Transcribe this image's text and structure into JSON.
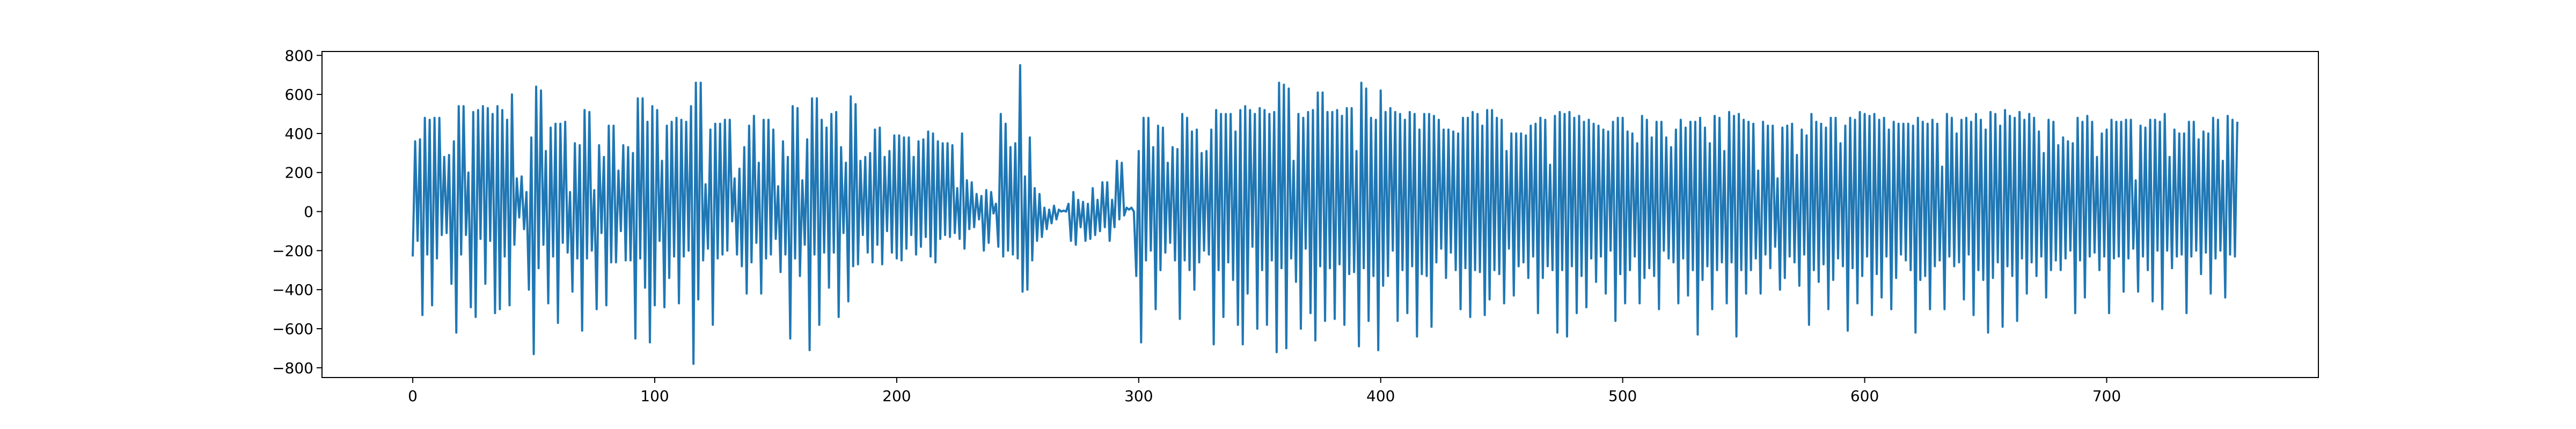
{
  "chart_data": {
    "type": "line",
    "title": "",
    "xlabel": "",
    "ylabel": "",
    "xlim": [
      -37.5,
      787.5
    ],
    "ylim": [
      -850,
      820
    ],
    "x_ticks": [
      0,
      100,
      200,
      300,
      400,
      500,
      600,
      700
    ],
    "y_ticks": [
      -800,
      -600,
      -400,
      -200,
      0,
      200,
      400,
      600,
      800
    ],
    "x_tick_labels": [
      "0",
      "100",
      "200",
      "300",
      "400",
      "500",
      "600",
      "700"
    ],
    "y_tick_labels": [
      "−800",
      "−600",
      "−400",
      "−200",
      "0",
      "200",
      "400",
      "600",
      "800"
    ],
    "grid": false,
    "legend": "none",
    "line_color": "#1f77b4",
    "series": [
      {
        "x_start": 0,
        "x_step": 1,
        "values": [
          -230,
          360,
          -150,
          370,
          -530,
          480,
          -220,
          470,
          -480,
          480,
          -240,
          480,
          -120,
          280,
          -110,
          290,
          -370,
          360,
          -620,
          540,
          -220,
          540,
          -120,
          200,
          -490,
          510,
          -540,
          520,
          -140,
          540,
          -370,
          530,
          -150,
          500,
          -520,
          540,
          -500,
          520,
          -230,
          470,
          -480,
          600,
          -170,
          170,
          -30,
          180,
          -90,
          100,
          -400,
          380,
          -730,
          640,
          -290,
          620,
          -170,
          310,
          -470,
          430,
          -230,
          450,
          -570,
          450,
          -160,
          460,
          -210,
          100,
          -410,
          350,
          -240,
          340,
          -610,
          520,
          -240,
          510,
          -200,
          110,
          -500,
          340,
          -110,
          280,
          -480,
          440,
          -260,
          440,
          -260,
          210,
          -100,
          340,
          -250,
          330,
          -250,
          300,
          -650,
          580,
          -240,
          580,
          -390,
          460,
          -670,
          540,
          -480,
          520,
          -150,
          260,
          -490,
          440,
          -340,
          460,
          -230,
          480,
          -470,
          470,
          -230,
          460,
          -200,
          540,
          -780,
          660,
          -450,
          660,
          -250,
          140,
          -190,
          420,
          -580,
          450,
          -240,
          450,
          -220,
          470,
          -200,
          470,
          -50,
          170,
          -220,
          220,
          -280,
          330,
          -420,
          440,
          -260,
          490,
          -160,
          250,
          -420,
          470,
          -240,
          470,
          -220,
          420,
          -140,
          130,
          -310,
          360,
          -220,
          280,
          -650,
          540,
          -240,
          530,
          -330,
          160,
          -170,
          370,
          -710,
          580,
          -220,
          580,
          -580,
          470,
          -210,
          430,
          -390,
          500,
          -210,
          510,
          -540,
          330,
          -110,
          250,
          -460,
          590,
          -280,
          550,
          -270,
          260,
          -120,
          280,
          -210,
          300,
          -260,
          420,
          -170,
          430,
          -270,
          280,
          -100,
          310,
          -210,
          390,
          -240,
          390,
          -250,
          380,
          -190,
          380,
          -120,
          280,
          -220,
          360,
          -180,
          370,
          -130,
          410,
          -230,
          400,
          -260,
          360,
          -140,
          350,
          -120,
          350,
          -130,
          340,
          -110,
          120,
          -140,
          400,
          -190,
          160,
          -90,
          150,
          -80,
          90,
          -40,
          80,
          -200,
          110,
          -160,
          100,
          -10,
          40,
          -180,
          500,
          -230,
          450,
          -200,
          330,
          -220,
          350,
          -240,
          750,
          -410,
          180,
          -400,
          380,
          -250,
          120,
          -150,
          90,
          -130,
          20,
          -90,
          10,
          -60,
          30,
          -40,
          10,
          0,
          5,
          0,
          40,
          -150,
          100,
          -170,
          60,
          -80,
          50,
          -150,
          40,
          -140,
          120,
          -120,
          60,
          -100,
          150,
          -80,
          150,
          -150,
          60,
          -80,
          260,
          -40,
          250,
          -20,
          20,
          10,
          20,
          0,
          -330,
          310,
          -670,
          480,
          -250,
          480,
          -200,
          330,
          -500,
          440,
          -300,
          430,
          -210,
          250,
          -160,
          330,
          -250,
          320,
          -550,
          500,
          -250,
          480,
          -300,
          410,
          -400,
          420,
          -260,
          300,
          -200,
          310,
          -220,
          420,
          -680,
          520,
          -300,
          500,
          -540,
          500,
          -260,
          500,
          -350,
          410,
          -580,
          520,
          -680,
          540,
          -420,
          520,
          -180,
          500,
          -600,
          530,
          -300,
          520,
          -580,
          500,
          -250,
          510,
          -720,
          660,
          -290,
          650,
          -700,
          630,
          -240,
          260,
          -360,
          500,
          -600,
          480,
          -190,
          510,
          -520,
          520,
          -660,
          610,
          -280,
          610,
          -560,
          510,
          -290,
          510,
          -550,
          520,
          -270,
          490,
          -580,
          530,
          -320,
          530,
          -310,
          310,
          -690,
          660,
          -290,
          630,
          -560,
          480,
          -330,
          470,
          -710,
          620,
          -380,
          510,
          -330,
          530,
          -200,
          510,
          -560,
          500,
          -300,
          470,
          -520,
          510,
          -280,
          500,
          -640,
          420,
          -320,
          500,
          -330,
          500,
          -590,
          490,
          -260,
          470,
          -190,
          420,
          -340,
          420,
          -210,
          410,
          -300,
          400,
          -500,
          480,
          -290,
          480,
          -540,
          510,
          -300,
          500,
          -310,
          440,
          -530,
          520,
          -450,
          520,
          -300,
          480,
          -320,
          470,
          -470,
          310,
          -190,
          400,
          -430,
          400,
          -280,
          400,
          -260,
          390,
          -340,
          440,
          -230,
          450,
          -520,
          480,
          -340,
          470,
          -280,
          240,
          -300,
          490,
          -620,
          510,
          -300,
          500,
          -640,
          510,
          -280,
          480,
          -520,
          490,
          -330,
          460,
          -490,
          470,
          -240,
          450,
          -360,
          440,
          -230,
          420,
          -420,
          410,
          -200,
          460,
          -560,
          480,
          -320,
          480,
          -470,
          410,
          -300,
          400,
          -230,
          350,
          -470,
          490,
          -340,
          470,
          -290,
          380,
          -330,
          460,
          -500,
          460,
          -200,
          380,
          -240,
          330,
          -260,
          420,
          -470,
          470,
          -240,
          430,
          -430,
          460,
          -300,
          460,
          -630,
          480,
          -350,
          430,
          -280,
          350,
          -500,
          490,
          -300,
          480,
          -260,
          310,
          -470,
          510,
          -260,
          490,
          -640,
          500,
          -300,
          470,
          -420,
          460,
          -300,
          450,
          -240,
          210,
          -420,
          460,
          -220,
          440,
          -290,
          440,
          -180,
          170,
          -400,
          430,
          -340,
          440,
          -230,
          450,
          -260,
          290,
          -380,
          420,
          -220,
          390,
          -580,
          500,
          -300,
          460,
          -360,
          450,
          -270,
          430,
          -500,
          480,
          -350,
          480,
          -240,
          350,
          -280,
          440,
          -610,
          480,
          -290,
          470,
          -470,
          510,
          -330,
          500,
          -230,
          490,
          -530,
          500,
          -320,
          470,
          -440,
          480,
          -230,
          420,
          -500,
          460,
          -340,
          450,
          -220,
          450,
          -250,
          450,
          -300,
          440,
          -620,
          480,
          -350,
          460,
          -330,
          450,
          -500,
          470,
          -280,
          450,
          -250,
          230,
          -500,
          500,
          -230,
          480,
          -280,
          400,
          -260,
          470,
          -450,
          480,
          -220,
          460,
          -530,
          500,
          -300,
          470,
          -350,
          420,
          -620,
          510,
          -340,
          500,
          -260,
          440,
          -590,
          520,
          -280,
          490,
          -330,
          480,
          -560,
          510,
          -240,
          470,
          -420,
          500,
          -260,
          480,
          -330,
          410,
          -230,
          300,
          -440,
          470,
          -300,
          460,
          -250,
          340,
          -300,
          380,
          -240,
          360,
          -200,
          350,
          -520,
          480,
          -250,
          460,
          -440,
          490,
          -230,
          460,
          -210,
          280,
          -300,
          400,
          -230,
          420,
          -520,
          470,
          -240,
          460,
          -230,
          460,
          -410,
          470,
          -240,
          470,
          -190,
          160,
          -410,
          440,
          -230,
          430,
          -300,
          470,
          -460,
          470,
          -200,
          460,
          -500,
          500,
          -200,
          280,
          -290,
          420,
          -230,
          400,
          -220,
          400,
          -520,
          460,
          -230,
          460,
          -200,
          370,
          -320,
          410,
          -210,
          400,
          -420,
          480,
          -240,
          470,
          -200,
          260,
          -440,
          490,
          -220,
          470,
          -230,
          460
        ]
      }
    ]
  }
}
